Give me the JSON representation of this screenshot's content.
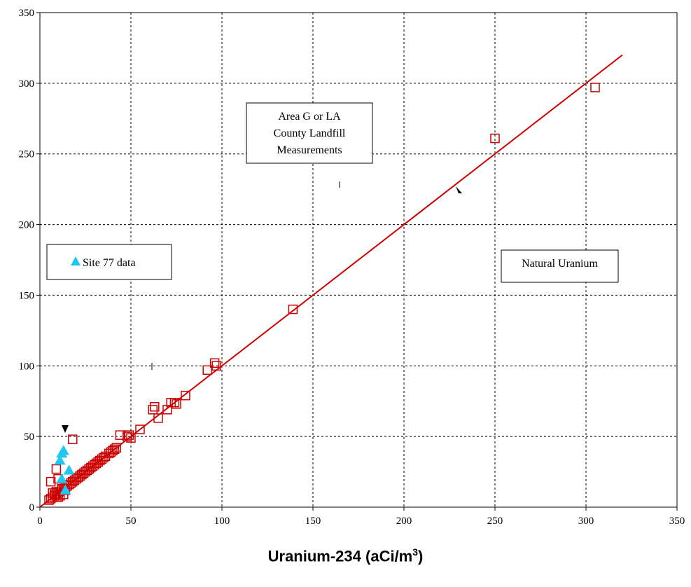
{
  "chart_data": {
    "type": "scatter",
    "title": "",
    "xlabel": "Uranium-234 (aCi/m",
    "xlabel_sup": "3",
    "xlabel_tail": ")",
    "ylabel": "",
    "xlim": [
      0,
      350
    ],
    "ylim": [
      0,
      350
    ],
    "xticks": [
      0,
      50,
      100,
      150,
      200,
      250,
      300,
      350
    ],
    "yticks": [
      0,
      50,
      100,
      150,
      200,
      250,
      300,
      350
    ],
    "grid": true,
    "colors": {
      "measurements": "#cc0000",
      "site77": "#1ec8f0",
      "line": "#cc0000"
    },
    "series": [
      {
        "name": "Area G or LA County Landfill Measurements",
        "marker": "square",
        "x": [
          5,
          6,
          7,
          8,
          9,
          10,
          11,
          12,
          13,
          14,
          15,
          16,
          17,
          18,
          19,
          20,
          21,
          22,
          23,
          24,
          25,
          26,
          27,
          28,
          29,
          30,
          31,
          32,
          33,
          34,
          35,
          36,
          38,
          39,
          40,
          41,
          42,
          44,
          48,
          49,
          50,
          55,
          62,
          63,
          65,
          70,
          72,
          74,
          75,
          80,
          92,
          96,
          97,
          139,
          250,
          305,
          6,
          7,
          8,
          9,
          10,
          11,
          12,
          13,
          14,
          10,
          9,
          18
        ],
        "y": [
          5,
          6,
          7,
          8,
          9,
          10,
          11,
          12,
          13,
          14,
          15,
          16,
          17,
          18,
          19,
          20,
          21,
          22,
          23,
          24,
          25,
          26,
          27,
          28,
          29,
          30,
          31,
          32,
          33,
          34,
          35,
          36,
          38,
          39,
          40,
          41,
          42,
          51,
          50,
          51,
          49,
          55,
          69,
          71,
          63,
          69,
          74,
          74,
          73,
          79,
          97,
          102,
          100,
          140,
          261,
          297,
          18,
          10,
          9,
          11,
          7,
          8,
          13,
          9,
          12,
          20,
          27,
          48
        ]
      },
      {
        "name": "Site 77 data",
        "marker": "triangle",
        "x": [
          11,
          12,
          13,
          16,
          12,
          14
        ],
        "y": [
          33,
          38,
          40,
          26,
          20,
          12
        ]
      },
      {
        "name": "Natural Uranium",
        "marker": "line",
        "x": [
          0,
          320
        ],
        "y": [
          0,
          320
        ]
      }
    ],
    "annotations": [
      {
        "text_lines": [
          "Area G or LA",
          "County Landfill",
          "Measurements"
        ]
      },
      {
        "text_lines": [
          "Site 77 data"
        ]
      },
      {
        "text_lines": [
          "Natural Uranium"
        ]
      }
    ]
  }
}
